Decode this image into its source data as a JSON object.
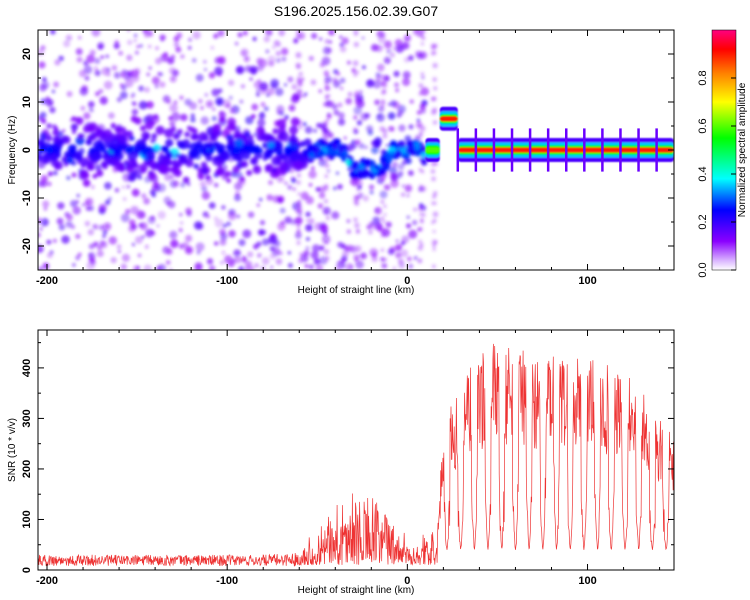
{
  "title": "S196.2025.156.02.39.G07",
  "chart_data": [
    {
      "type": "heatmap",
      "xlabel": "Height of straight line (km)",
      "ylabel": "Frequency (Hz)",
      "xlim": [
        -205,
        148
      ],
      "ylim": [
        -25,
        25
      ],
      "xticks": [
        -200,
        -100,
        0,
        100
      ],
      "yticks": [
        -20,
        -10,
        0,
        10,
        20
      ],
      "colorbar": {
        "label": "Normalized spectral amplitude",
        "range": [
          0,
          1
        ],
        "ticks": [
          0.0,
          0.2,
          0.4,
          0.6,
          0.8
        ],
        "tick_labels": [
          "0.0",
          "0.2",
          "0.4",
          "0.6",
          "0.8"
        ],
        "colormap": [
          "#ffffff",
          "#8a00ff",
          "#0000ff",
          "#00ffff",
          "#00ff00",
          "#ffff00",
          "#ff8000",
          "#ff0000",
          "#ff0080"
        ]
      },
      "segments": [
        {
          "x_start": -205,
          "x_end": -55,
          "frequency": 0,
          "amplitude": 0.15,
          "note": "scattered noise"
        },
        {
          "x_start": -55,
          "x_end": 10,
          "frequency": -2,
          "amplitude": 0.4,
          "note": "wavy track"
        },
        {
          "x_start": 10,
          "x_end": 18,
          "frequency": 0,
          "amplitude": 0.6
        },
        {
          "x_start": 18,
          "x_end": 28,
          "frequency": 6.5,
          "amplitude": 0.9
        },
        {
          "x_start": 28,
          "x_end": 148,
          "frequency": 0,
          "amplitude": 0.9
        }
      ]
    },
    {
      "type": "line",
      "xlabel": "Height of straight line (km)",
      "ylabel": "SNR (10 * v/v)",
      "xlim": [
        -205,
        148
      ],
      "ylim": [
        0,
        475
      ],
      "xticks": [
        -200,
        -100,
        0,
        100
      ],
      "yticks": [
        0,
        100,
        200,
        300,
        400
      ],
      "color": "#ee3333",
      "envelope": {
        "x": [
          -205,
          -80,
          -60,
          -50,
          -40,
          -30,
          -20,
          -10,
          0,
          10,
          17,
          20,
          30,
          40,
          50,
          60,
          70,
          80,
          90,
          100,
          110,
          120,
          130,
          140,
          148
        ],
        "y": [
          30,
          30,
          35,
          80,
          130,
          160,
          150,
          120,
          60,
          60,
          100,
          300,
          390,
          430,
          455,
          440,
          430,
          430,
          425,
          420,
          410,
          390,
          360,
          300,
          280
        ]
      },
      "dips": {
        "start": 22,
        "spacing": 7.6,
        "count": 17,
        "floor": 40
      }
    }
  ]
}
